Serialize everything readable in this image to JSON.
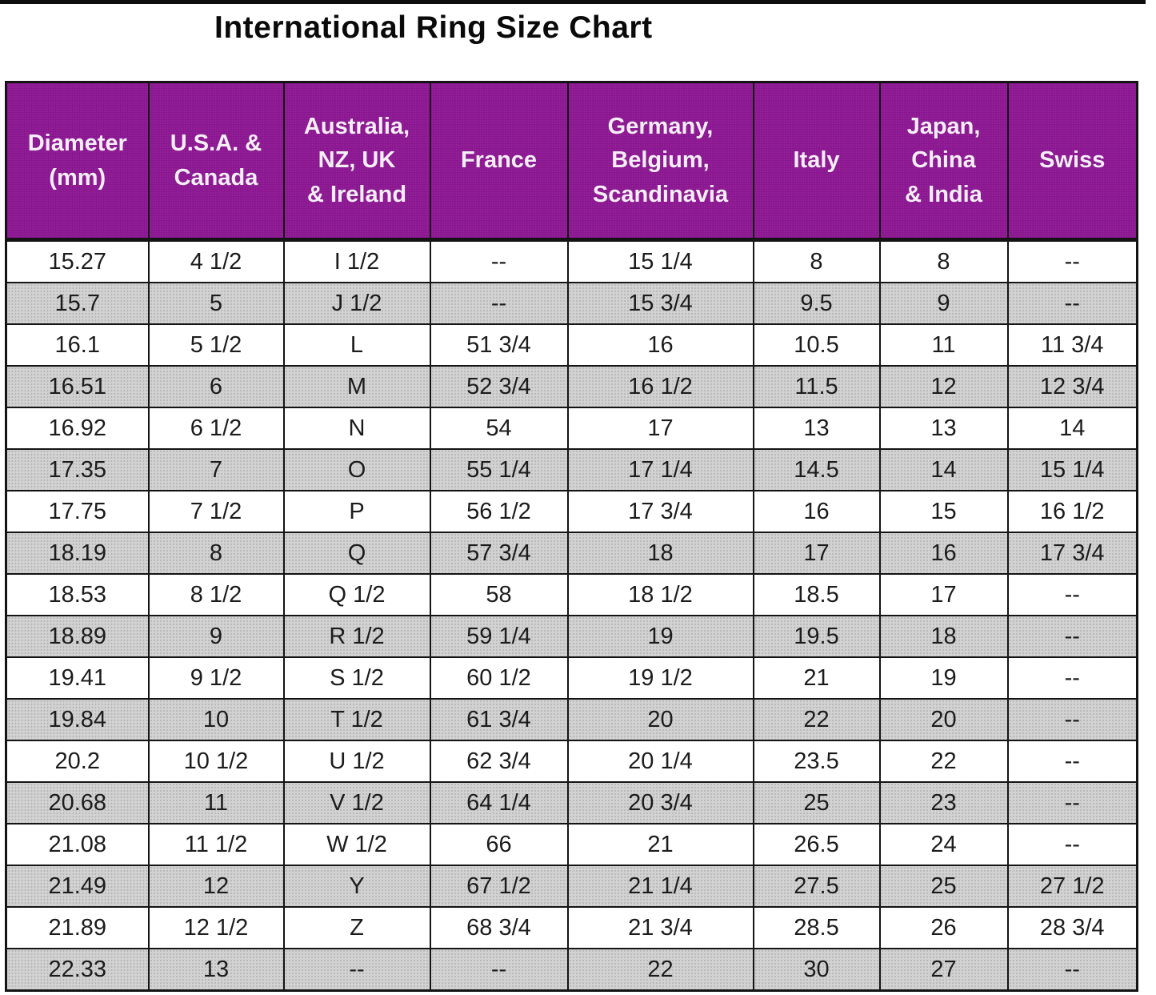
{
  "title": "International Ring Size Chart",
  "colors": {
    "header_bg": "#8b1691",
    "header_text": "#ffffff",
    "alt_row_bg": "#d2d2d2",
    "border": "#141414"
  },
  "chart_data": {
    "type": "table",
    "title": "International Ring Size Chart",
    "columns": [
      "Diameter\n(mm)",
      "U.S.A. &\nCanada",
      "Australia,\nNZ, UK\n& Ireland",
      "France",
      "Germany,\nBelgium,\nScandinavia",
      "Italy",
      "Japan,\nChina\n& India",
      "Swiss"
    ],
    "rows": [
      [
        "15.27",
        "4 1/2",
        "I 1/2",
        "--",
        "15 1/4",
        "8",
        "8",
        "--"
      ],
      [
        "15.7",
        "5",
        "J 1/2",
        "--",
        "15 3/4",
        "9.5",
        "9",
        "--"
      ],
      [
        "16.1",
        "5 1/2",
        "L",
        "51 3/4",
        "16",
        "10.5",
        "11",
        "11 3/4"
      ],
      [
        "16.51",
        "6",
        "M",
        "52 3/4",
        "16 1/2",
        "11.5",
        "12",
        "12 3/4"
      ],
      [
        "16.92",
        "6 1/2",
        "N",
        "54",
        "17",
        "13",
        "13",
        "14"
      ],
      [
        "17.35",
        "7",
        "O",
        "55 1/4",
        "17 1/4",
        "14.5",
        "14",
        "15 1/4"
      ],
      [
        "17.75",
        "7 1/2",
        "P",
        "56 1/2",
        "17 3/4",
        "16",
        "15",
        "16 1/2"
      ],
      [
        "18.19",
        "8",
        "Q",
        "57 3/4",
        "18",
        "17",
        "16",
        "17 3/4"
      ],
      [
        "18.53",
        "8 1/2",
        "Q 1/2",
        "58",
        "18 1/2",
        "18.5",
        "17",
        "--"
      ],
      [
        "18.89",
        "9",
        "R 1/2",
        "59 1/4",
        "19",
        "19.5",
        "18",
        "--"
      ],
      [
        "19.41",
        "9 1/2",
        "S 1/2",
        "60 1/2",
        "19 1/2",
        "21",
        "19",
        "--"
      ],
      [
        "19.84",
        "10",
        "T 1/2",
        "61 3/4",
        "20",
        "22",
        "20",
        "--"
      ],
      [
        "20.2",
        "10 1/2",
        "U 1/2",
        "62 3/4",
        "20 1/4",
        "23.5",
        "22",
        "--"
      ],
      [
        "20.68",
        "11",
        "V 1/2",
        "64 1/4",
        "20 3/4",
        "25",
        "23",
        "--"
      ],
      [
        "21.08",
        "11 1/2",
        "W 1/2",
        "66",
        "21",
        "26.5",
        "24",
        "--"
      ],
      [
        "21.49",
        "12",
        "Y",
        "67 1/2",
        "21 1/4",
        "27.5",
        "25",
        "27 1/2"
      ],
      [
        "21.89",
        "12 1/2",
        "Z",
        "68 3/4",
        "21 3/4",
        "28.5",
        "26",
        "28 3/4"
      ],
      [
        "22.33",
        "13",
        "--",
        "--",
        "22",
        "30",
        "27",
        "--"
      ]
    ]
  }
}
